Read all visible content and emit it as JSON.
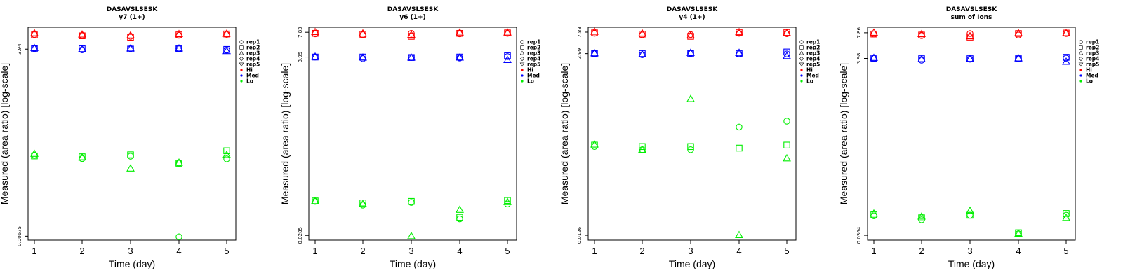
{
  "chart_data": [
    {
      "type": "scatter",
      "title": "DASAVSLSESK",
      "subtitle": "y7 (1+)",
      "xlabel": "Time (day)",
      "ylabel": "Measured (area ratio) [log-scale]",
      "xticks": [
        "1",
        "2",
        "3",
        "4",
        "5"
      ],
      "ytick_labels": [
        "0.00675",
        "3.94"
      ],
      "ytick_values": [
        0.00675,
        3.94
      ],
      "ylim": [
        0.0059,
        8.3
      ],
      "legend_markers": [
        "rep1",
        "rep2",
        "rep3",
        "rep4",
        "rep5"
      ],
      "legend_colors": [
        {
          "label": "Hi",
          "color": "#ff0000"
        },
        {
          "label": "Med",
          "color": "#0000ff"
        },
        {
          "label": "Lo",
          "color": "#00ee00"
        }
      ],
      "series": [
        {
          "level": "Hi",
          "color": "#ff0000",
          "rep1": [
            6.5,
            6.3,
            6.1,
            6.3,
            6.5
          ],
          "rep2": [
            6.4,
            6.2,
            5.9,
            6.4,
            6.6
          ],
          "rep3": [
            6.8,
            6.5,
            6.3,
            6.6,
            6.7
          ]
        },
        {
          "level": "Med",
          "color": "#0000ff",
          "rep1": [
            4.05,
            3.85,
            4.0,
            4.02,
            3.8
          ],
          "rep2": [
            4.0,
            4.0,
            3.95,
            3.98,
            3.9
          ],
          "rep3": [
            4.1,
            3.95,
            4.05,
            4.05,
            3.7
          ]
        },
        {
          "level": "Lo",
          "color": "#00ee00",
          "rep1": [
            0.107,
            0.095,
            0.103,
            0.081,
            0.094
          ],
          "rep2": [
            0.104,
            0.101,
            0.108,
            0.081,
            0.124
          ],
          "rep3": [
            0.112,
            0.099,
            0.068,
            0.083,
            0.108
          ]
        }
      ],
      "extra_points": [
        {
          "level": "Lo",
          "color": "#00ee00",
          "marker": "rep1",
          "x": 4,
          "y": 0.0066
        }
      ]
    },
    {
      "type": "scatter",
      "title": "DASAVSLSESK",
      "subtitle": "y6 (1+)",
      "xlabel": "Time (day)",
      "ylabel": "Measured (area ratio) [log-scale]",
      "xticks": [
        "1",
        "2",
        "3",
        "4",
        "5"
      ],
      "ytick_labels": [
        "0.0285",
        "3.95",
        "7.83"
      ],
      "ytick_values": [
        0.0285,
        3.95,
        7.83
      ],
      "ylim": [
        0.025,
        9.0
      ],
      "legend_markers": [
        "rep1",
        "rep2",
        "rep3",
        "rep4",
        "rep5"
      ],
      "legend_colors": [
        {
          "label": "Hi",
          "color": "#ff0000"
        },
        {
          "label": "Med",
          "color": "#0000ff"
        },
        {
          "label": "Lo",
          "color": "#00ee00"
        }
      ],
      "series": [
        {
          "level": "Hi",
          "color": "#ff0000",
          "rep1": [
            7.5,
            7.3,
            7.6,
            7.5,
            7.6
          ],
          "rep2": [
            7.6,
            7.4,
            7.0,
            7.6,
            7.7
          ],
          "rep3": [
            7.9,
            7.6,
            7.3,
            7.8,
            7.8
          ]
        },
        {
          "level": "Med",
          "color": "#0000ff",
          "rep1": [
            3.95,
            3.78,
            3.9,
            3.85,
            4.0
          ],
          "rep2": [
            3.95,
            3.95,
            3.9,
            3.95,
            4.1
          ],
          "rep3": [
            4.0,
            3.9,
            3.9,
            3.9,
            3.65
          ]
        },
        {
          "level": "Lo",
          "color": "#00ee00",
          "rep1": [
            0.073,
            0.066,
            0.071,
            0.045,
            0.068
          ],
          "rep2": [
            0.074,
            0.07,
            0.073,
            0.047,
            0.075
          ],
          "rep3": [
            0.074,
            0.068,
            0.028,
            0.058,
            0.072
          ]
        }
      ],
      "extra_points": []
    },
    {
      "type": "scatter",
      "title": "DASAVSLSESK",
      "subtitle": "y4 (1+)",
      "xlabel": "Time (day)",
      "ylabel": "Measured (area ratio) [log-scale]",
      "xticks": [
        "1",
        "2",
        "3",
        "4",
        "5"
      ],
      "ytick_labels": [
        "0.0126",
        "3.99",
        "7.88"
      ],
      "ytick_values": [
        0.0126,
        3.99,
        7.88
      ],
      "ylim": [
        0.0108,
        9.2
      ],
      "legend_markers": [
        "rep1",
        "rep2",
        "rep3",
        "rep4",
        "rep5"
      ],
      "legend_colors": [
        {
          "label": "Hi",
          "color": "#ff0000"
        },
        {
          "label": "Med",
          "color": "#0000ff"
        },
        {
          "label": "Lo",
          "color": "#00ee00"
        }
      ],
      "series": [
        {
          "level": "Hi",
          "color": "#ff0000",
          "rep1": [
            7.6,
            7.2,
            7.3,
            7.6,
            7.5
          ],
          "rep2": [
            7.7,
            7.4,
            6.9,
            7.8,
            7.8
          ],
          "rep3": [
            8.0,
            7.6,
            7.1,
            7.9,
            7.7
          ]
        },
        {
          "level": "Med",
          "color": "#0000ff",
          "rep1": [
            4.0,
            3.85,
            4.05,
            3.95,
            3.95
          ],
          "rep2": [
            4.0,
            4.0,
            4.0,
            4.0,
            4.2
          ],
          "rep3": [
            4.05,
            3.9,
            4.1,
            4.1,
            3.7
          ]
        },
        {
          "level": "Lo",
          "color": "#00ee00",
          "rep1": [
            0.21,
            0.19,
            0.19,
            0.39,
            0.47
          ],
          "rep2": [
            0.22,
            0.21,
            0.21,
            0.2,
            0.22
          ],
          "rep3": [
            0.225,
            0.19,
            0.95,
            0.0127,
            0.145
          ]
        }
      ],
      "extra_points": []
    },
    {
      "type": "scatter",
      "title": "DASAVSLSESK",
      "subtitle": "sum of Ions",
      "xlabel": "Time (day)",
      "ylabel": "Measured (area ratio) [log-scale]",
      "xticks": [
        "1",
        "2",
        "3",
        "4",
        "5"
      ],
      "ytick_labels": [
        "0.0364",
        "3.98",
        "7.86"
      ],
      "ytick_values": [
        0.0364,
        3.98,
        7.86
      ],
      "ylim": [
        0.032,
        9.1
      ],
      "legend_markers": [
        "rep1",
        "rep2",
        "rep3",
        "rep4",
        "rep5"
      ],
      "legend_colors": [
        {
          "label": "Hi",
          "color": "#ff0000"
        },
        {
          "label": "Med",
          "color": "#0000ff"
        },
        {
          "label": "Lo",
          "color": "#00ee00"
        }
      ],
      "series": [
        {
          "level": "Hi",
          "color": "#ff0000",
          "rep1": [
            7.6,
            7.3,
            7.7,
            7.4,
            7.7
          ],
          "rep2": [
            7.6,
            7.4,
            7.0,
            7.7,
            7.8
          ],
          "rep3": [
            7.9,
            7.6,
            7.2,
            7.8,
            7.8
          ]
        },
        {
          "level": "Med",
          "color": "#0000ff",
          "rep1": [
            3.98,
            3.8,
            3.9,
            3.95,
            4.0
          ],
          "rep2": [
            4.0,
            3.95,
            3.95,
            3.95,
            4.1
          ],
          "rep3": [
            4.05,
            3.9,
            3.95,
            4.0,
            3.65
          ]
        },
        {
          "level": "Lo",
          "color": "#00ee00",
          "rep1": [
            0.061,
            0.055,
            0.062,
            0.038,
            0.062
          ],
          "rep2": [
            0.063,
            0.058,
            0.062,
            0.039,
            0.065
          ],
          "rep3": [
            0.065,
            0.06,
            0.07,
            0.038,
            0.058
          ]
        }
      ],
      "extra_points": []
    }
  ]
}
